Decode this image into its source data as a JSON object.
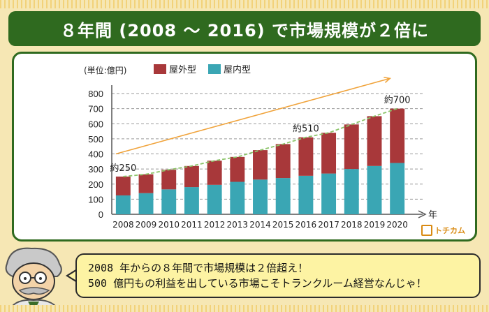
{
  "title": "８年間 (2008 ～ 2016) で市場規模が２倍に",
  "logo_text": "トチカム",
  "speech": {
    "line1": "2008 年からの８年間で市場規模は２倍超え！",
    "line2": "500 億円もの利益を出している市場こそトランクルーム経営なんじゃ！"
  },
  "chart_data": {
    "type": "bar",
    "stacked": true,
    "ylabel": "(単位:億円)",
    "xunit": "年",
    "ylim": [
      0,
      800
    ],
    "yticks": [
      0,
      100,
      200,
      300,
      400,
      500,
      600,
      700,
      800
    ],
    "categories": [
      "2008",
      "2009",
      "2010",
      "2011",
      "2012",
      "2013",
      "2014",
      "2015",
      "2016",
      "2017",
      "2018",
      "2019",
      "2020"
    ],
    "series": [
      {
        "name": "屋内型",
        "color": "#3aa6b4",
        "values": [
          125,
          140,
          165,
          180,
          195,
          215,
          230,
          240,
          255,
          270,
          300,
          320,
          340
        ]
      },
      {
        "name": "屋外型",
        "color": "#a8383a",
        "values": [
          125,
          125,
          130,
          140,
          160,
          165,
          195,
          225,
          255,
          270,
          295,
          330,
          360
        ]
      }
    ],
    "annotations": [
      {
        "text": "約250",
        "category": "2008",
        "value": 250
      },
      {
        "text": "約510",
        "category": "2016",
        "value": 510
      },
      {
        "text": "約700",
        "category": "2020",
        "value": 700
      }
    ],
    "trend_arrow": {
      "color": "#f0a33b",
      "from": {
        "category": "2008",
        "value": 400
      },
      "to": {
        "category": "2020",
        "value": 900
      }
    },
    "trend_line_color": "#8cc46a",
    "grid": true,
    "legend": "top-left"
  }
}
